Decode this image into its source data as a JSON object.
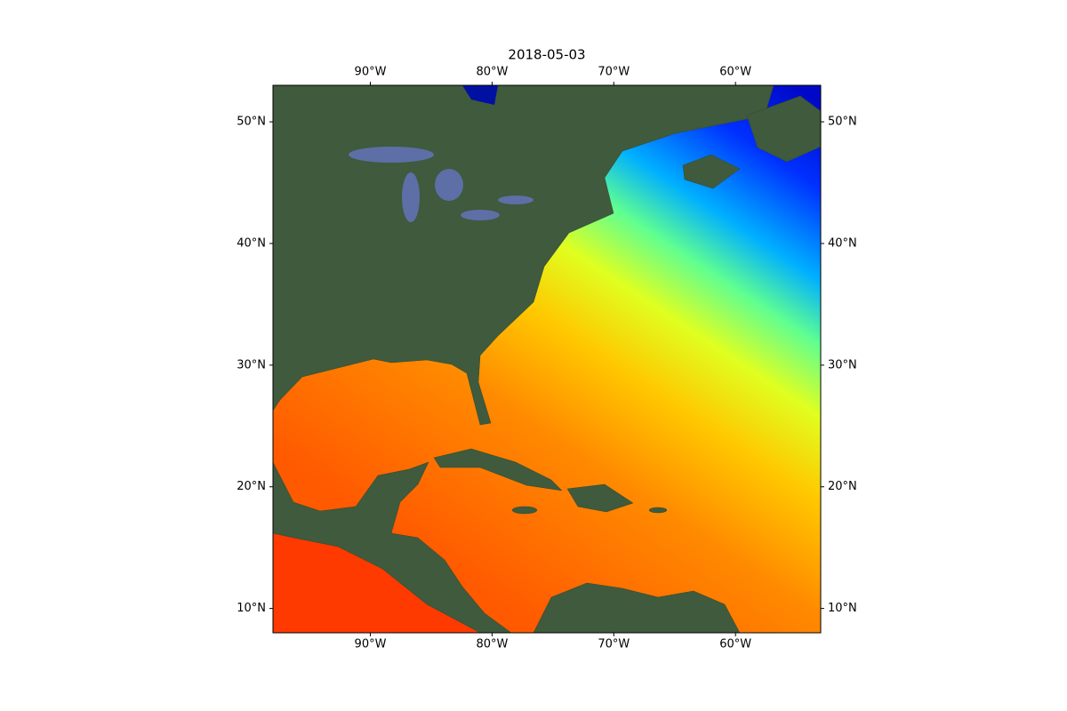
{
  "chart_data": {
    "type": "map",
    "title": "2018-05-03",
    "xlim": [
      -98,
      -53
    ],
    "ylim": [
      8,
      53
    ],
    "xticks": [
      {
        "value": -90,
        "label": "90°W"
      },
      {
        "value": -80,
        "label": "80°W"
      },
      {
        "value": -70,
        "label": "70°W"
      },
      {
        "value": -60,
        "label": "60°W"
      }
    ],
    "yticks": [
      {
        "value": 10,
        "label": "10°N"
      },
      {
        "value": 20,
        "label": "20°N"
      },
      {
        "value": 30,
        "label": "30°N"
      },
      {
        "value": 40,
        "label": "40°N"
      },
      {
        "value": 50,
        "label": "50°N"
      }
    ]
  }
}
